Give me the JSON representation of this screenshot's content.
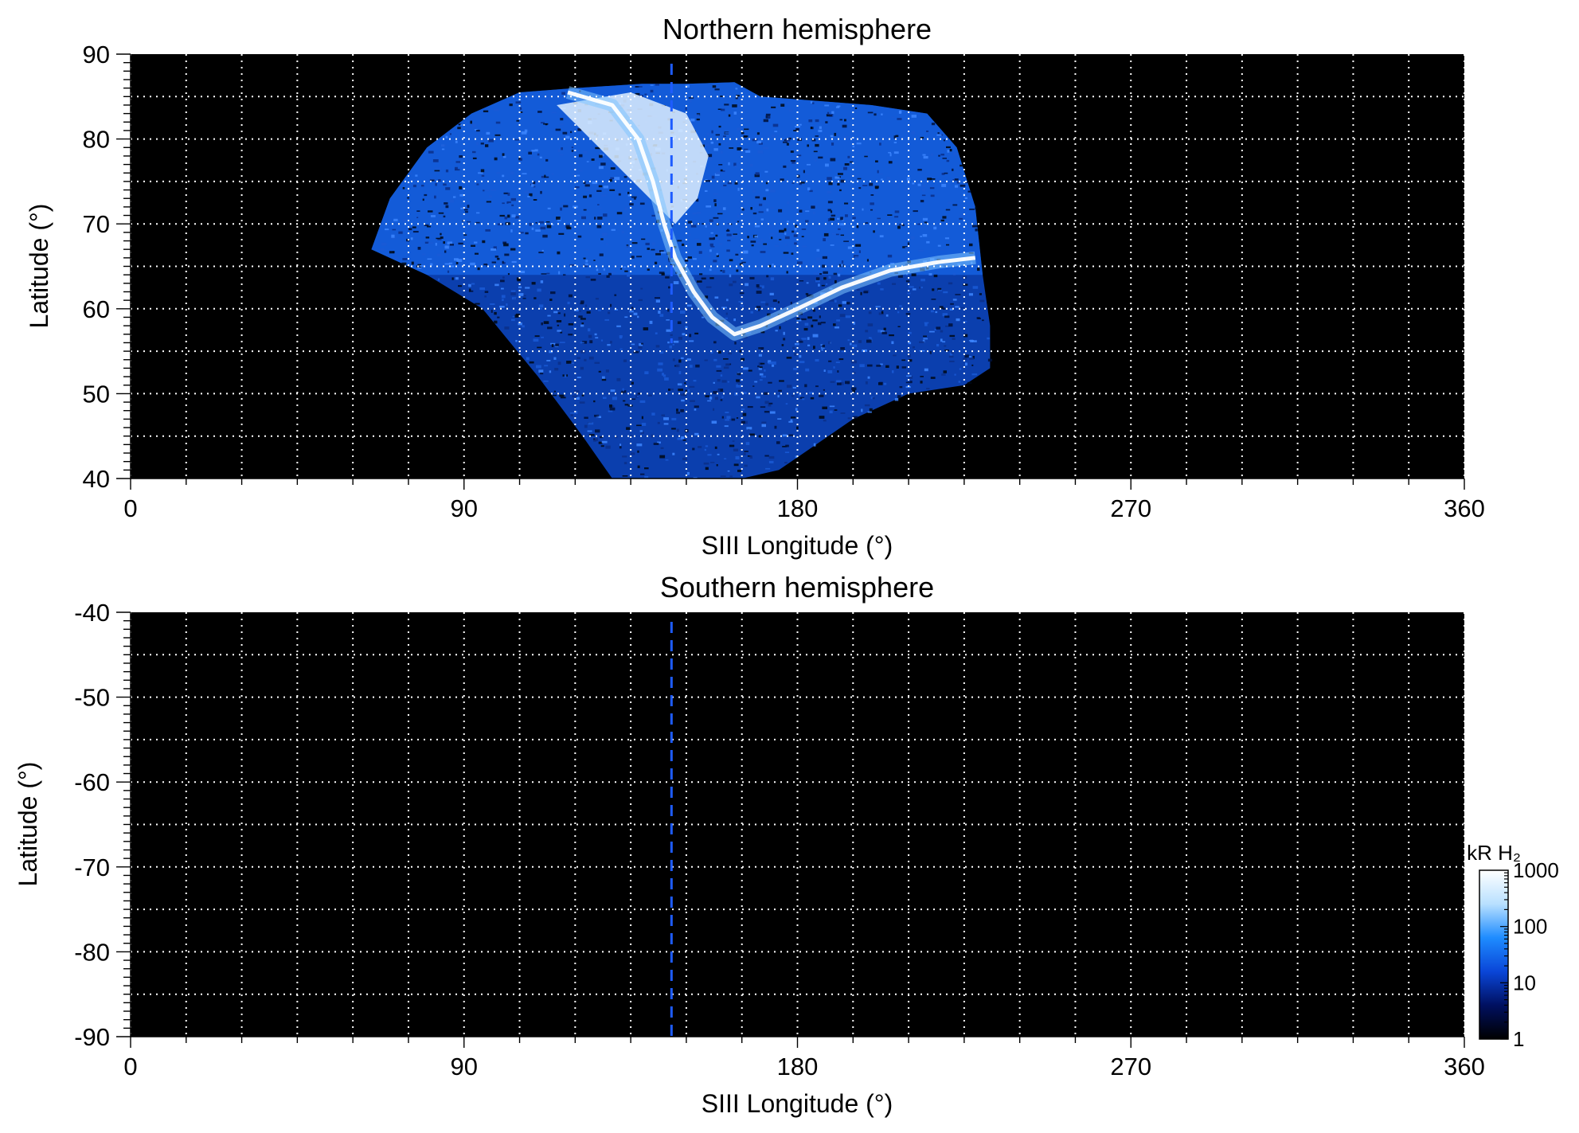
{
  "chart_data": [
    {
      "type": "heatmap",
      "title": "Northern hemisphere",
      "xlabel": "SIII Longitude (°)",
      "ylabel": "Latitude (°)",
      "xlim": [
        0,
        360
      ],
      "ylim": [
        40,
        90
      ],
      "xticks": [
        0,
        90,
        180,
        270,
        360
      ],
      "xtick_labels": [
        "0",
        "90",
        "180",
        "270",
        "360"
      ],
      "yticks": [
        40,
        50,
        60,
        70,
        80,
        90
      ],
      "ytick_labels": [
        "40",
        "50",
        "60",
        "70",
        "80",
        "90"
      ],
      "grid": true,
      "background": "#000000",
      "dashed_marker_longitude": 146,
      "emission_region": {
        "outline_lon_lat": [
          [
            130,
            40
          ],
          [
            122,
            45
          ],
          [
            110,
            52
          ],
          [
            95,
            60
          ],
          [
            80,
            64
          ],
          [
            65,
            67
          ],
          [
            70,
            73
          ],
          [
            80,
            79
          ],
          [
            92,
            83
          ],
          [
            105,
            85.5
          ],
          [
            120,
            86
          ],
          [
            138,
            86.5
          ],
          [
            150,
            86.5
          ],
          [
            163,
            86.7
          ],
          [
            170,
            85
          ],
          [
            185,
            84.5
          ],
          [
            200,
            84
          ],
          [
            215,
            83
          ],
          [
            223,
            79
          ],
          [
            228,
            72
          ],
          [
            230,
            64
          ],
          [
            232,
            58
          ],
          [
            232,
            53
          ],
          [
            225,
            51
          ],
          [
            210,
            50
          ],
          [
            195,
            47
          ],
          [
            185,
            44
          ],
          [
            175,
            41
          ],
          [
            165,
            40
          ]
        ],
        "main_oval_lon_lat": [
          [
            118,
            85.5
          ],
          [
            130,
            84
          ],
          [
            137,
            80
          ],
          [
            141,
            75
          ],
          [
            144,
            70
          ],
          [
            147,
            66
          ],
          [
            152,
            62
          ],
          [
            157,
            59
          ],
          [
            163,
            57
          ],
          [
            170,
            58
          ],
          [
            180,
            60
          ],
          [
            192,
            62.5
          ],
          [
            205,
            64.5
          ],
          [
            218,
            65.5
          ],
          [
            228,
            66
          ]
        ],
        "bright_cap_lon_lat": [
          [
            115,
            84
          ],
          [
            135,
            85.5
          ],
          [
            150,
            83
          ],
          [
            156,
            78
          ],
          [
            153,
            73
          ],
          [
            147,
            70
          ]
        ]
      }
    },
    {
      "type": "heatmap",
      "title": "Southern hemisphere",
      "xlabel": "SIII Longitude (°)",
      "ylabel": "Latitude (°)",
      "xlim": [
        0,
        360
      ],
      "ylim": [
        -90,
        -40
      ],
      "xticks": [
        0,
        90,
        180,
        270,
        360
      ],
      "xtick_labels": [
        "0",
        "90",
        "180",
        "270",
        "360"
      ],
      "yticks": [
        -40,
        -50,
        -60,
        -70,
        -80,
        -90
      ],
      "ytick_labels": [
        "-40",
        "-50",
        "-60",
        "-70",
        "-80",
        "-90"
      ],
      "grid": true,
      "background": "#000000",
      "dashed_marker_longitude": 146
    }
  ],
  "colorbar": {
    "label": "kR H₂",
    "scale": "log",
    "range": [
      1,
      1000
    ],
    "ticks": [
      1,
      10,
      100,
      1000
    ],
    "tick_labels": [
      "1",
      "10",
      "100",
      "1000"
    ],
    "colors": [
      "#000000",
      "#001060",
      "#0a46d8",
      "#1e8cff",
      "#b8e0ff",
      "#ffffff"
    ]
  },
  "colors": {
    "background": "#000000",
    "grid": "#ffffff",
    "marker": "#1e5cff"
  }
}
